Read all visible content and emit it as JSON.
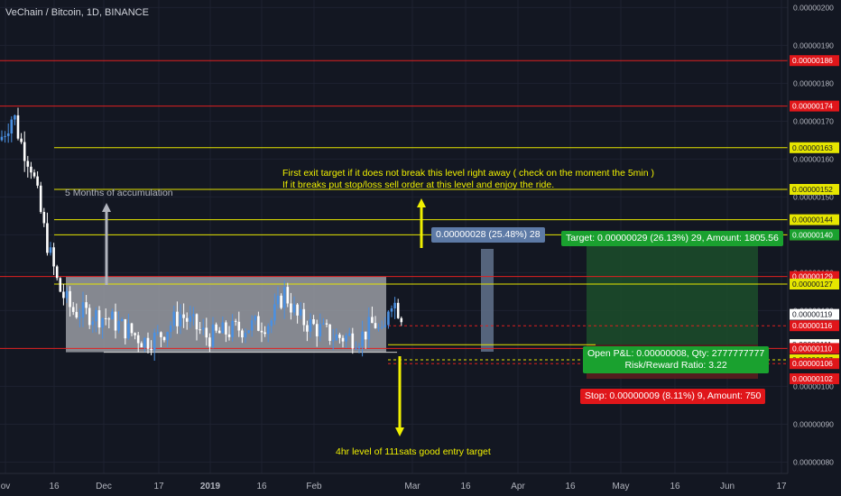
{
  "header": {
    "title": "VeChain / Bitcoin, 1D, BINANCE"
  },
  "annotations": {
    "accumulation": "5 Months of accumulation",
    "exit_line1": "First exit target if it does not break this level right away ( check on the moment the 5min )",
    "exit_line2": "If it breaks put stop/loss sell order at this level and enjoy the ride.",
    "entry": "4hr level of 111sats good entry target",
    "measure": "0.00000028 (25.48%) 28",
    "target": "Target: 0.00000029 (26.13%) 29, Amount: 1805.56",
    "pnl_line1": "Open P&L: 0.00000008, Qty: 2777777777",
    "pnl_line2": "Risk/Reward Ratio: 3.22",
    "stop": "Stop: 0.00000009 (8.11%) 9, Amount: 750"
  },
  "colors": {
    "background": "#131722",
    "up": "#4a90e2",
    "down": "#ffffff",
    "red_line": "#e02020",
    "yellow_line": "#e6e600",
    "target_zone": "#1c4a2a",
    "stop_zone": "#5a1e1e",
    "range_box": "#9a9ca3",
    "measure_box": "#5d6d86",
    "green_label": "#1aa12f",
    "red_label": "#e0161a"
  },
  "chart_data": {
    "type": "candlestick",
    "symbol": "VeChain / Bitcoin",
    "interval": "1D",
    "exchange": "BINANCE",
    "y_axis": {
      "min": 7.7e-07,
      "max": 2.02e-06,
      "ticks": [
        "0.00000200",
        "0.00000190",
        "0.00000180",
        "0.00000170",
        "0.00000160",
        "0.00000150",
        "0.00000140",
        "0.00000130",
        "0.00000120",
        "0.00000110",
        "0.00000100",
        "0.00000090",
        "0.00000080"
      ]
    },
    "x_axis": {
      "ticks": [
        "ov",
        "16",
        "Dec",
        "17",
        "2019",
        "16",
        "Feb",
        "Mar",
        "16",
        "Apr",
        "16",
        "May",
        "16",
        "Jun",
        "17"
      ]
    },
    "candles_summary": {
      "start_price": 1.65e-06,
      "peak": 1.74e-06,
      "range_low": 1.09e-06,
      "range_high": 1.29e-06,
      "last_price": 1.19e-06
    },
    "horizontal_levels": [
      {
        "value": 1.86e-06,
        "label": "0.00000186",
        "color": "red"
      },
      {
        "value": 1.74e-06,
        "label": "0.00000174",
        "color": "red"
      },
      {
        "value": 1.63e-06,
        "label": "0.00000163",
        "color": "yellow"
      },
      {
        "value": 1.52e-06,
        "label": "0.00000152",
        "color": "yellow"
      },
      {
        "value": 1.44e-06,
        "label": "0.00000144",
        "color": "yellow"
      },
      {
        "value": 1.4e-06,
        "label": "0.00000140",
        "color": "yellow"
      },
      {
        "value": 1.29e-06,
        "label": "0.00000129",
        "color": "red"
      },
      {
        "value": 1.27e-06,
        "label": "0.00000127",
        "color": "yellow"
      },
      {
        "value": 1.1e-06,
        "label": "0.00000110",
        "color": "red"
      }
    ],
    "price_labels": [
      {
        "value": 1.86e-06,
        "label": "0.00000186",
        "bg": "#e0161a"
      },
      {
        "value": 1.74e-06,
        "label": "0.00000174",
        "bg": "#e0161a"
      },
      {
        "value": 1.63e-06,
        "label": "0.00000163",
        "bg": "#e6e600"
      },
      {
        "value": 1.52e-06,
        "label": "0.00000152",
        "bg": "#e6e600"
      },
      {
        "value": 1.44e-06,
        "label": "0.00000144",
        "bg": "#e6e600"
      },
      {
        "value": 1.4e-06,
        "label": "0.00000140",
        "bg": "#e6e600"
      },
      {
        "value": 1.4e-06,
        "label": "0.00000140",
        "bg": "#1aa12f"
      },
      {
        "value": 1.29e-06,
        "label": "0.00000129",
        "bg": "#e0161a"
      },
      {
        "value": 1.27e-06,
        "label": "0.00000127",
        "bg": "#e6e600"
      },
      {
        "value": 1.27e-06,
        "label": "0.00000127",
        "bg": "#e6e600"
      },
      {
        "value": 1.19e-06,
        "label": "0.00000119",
        "bg": "#ffffff"
      },
      {
        "value": 1.16e-06,
        "label": "0.00000116",
        "bg": "#e0161a"
      },
      {
        "value": 1.11e-06,
        "label": "0.00000111",
        "bg": "#e6e600"
      },
      {
        "value": 1.11e-06,
        "label": "0.00000111",
        "bg": "#ffffff"
      },
      {
        "value": 1.1e-06,
        "label": "0.00000110",
        "bg": "#e0161a"
      },
      {
        "value": 1.07e-06,
        "label": "0.00000107",
        "bg": "#e6e600"
      },
      {
        "value": 1.06e-06,
        "label": "0.00000106",
        "bg": "#e0161a"
      },
      {
        "value": 1.02e-06,
        "label": "0.00000102",
        "bg": "#c8c8c8"
      },
      {
        "value": 1.02e-06,
        "label": "0.00000102",
        "bg": "#e0161a"
      }
    ],
    "position": {
      "entry": 1.11e-06,
      "target": 1.4e-06,
      "stop": 1.02e-06
    }
  }
}
